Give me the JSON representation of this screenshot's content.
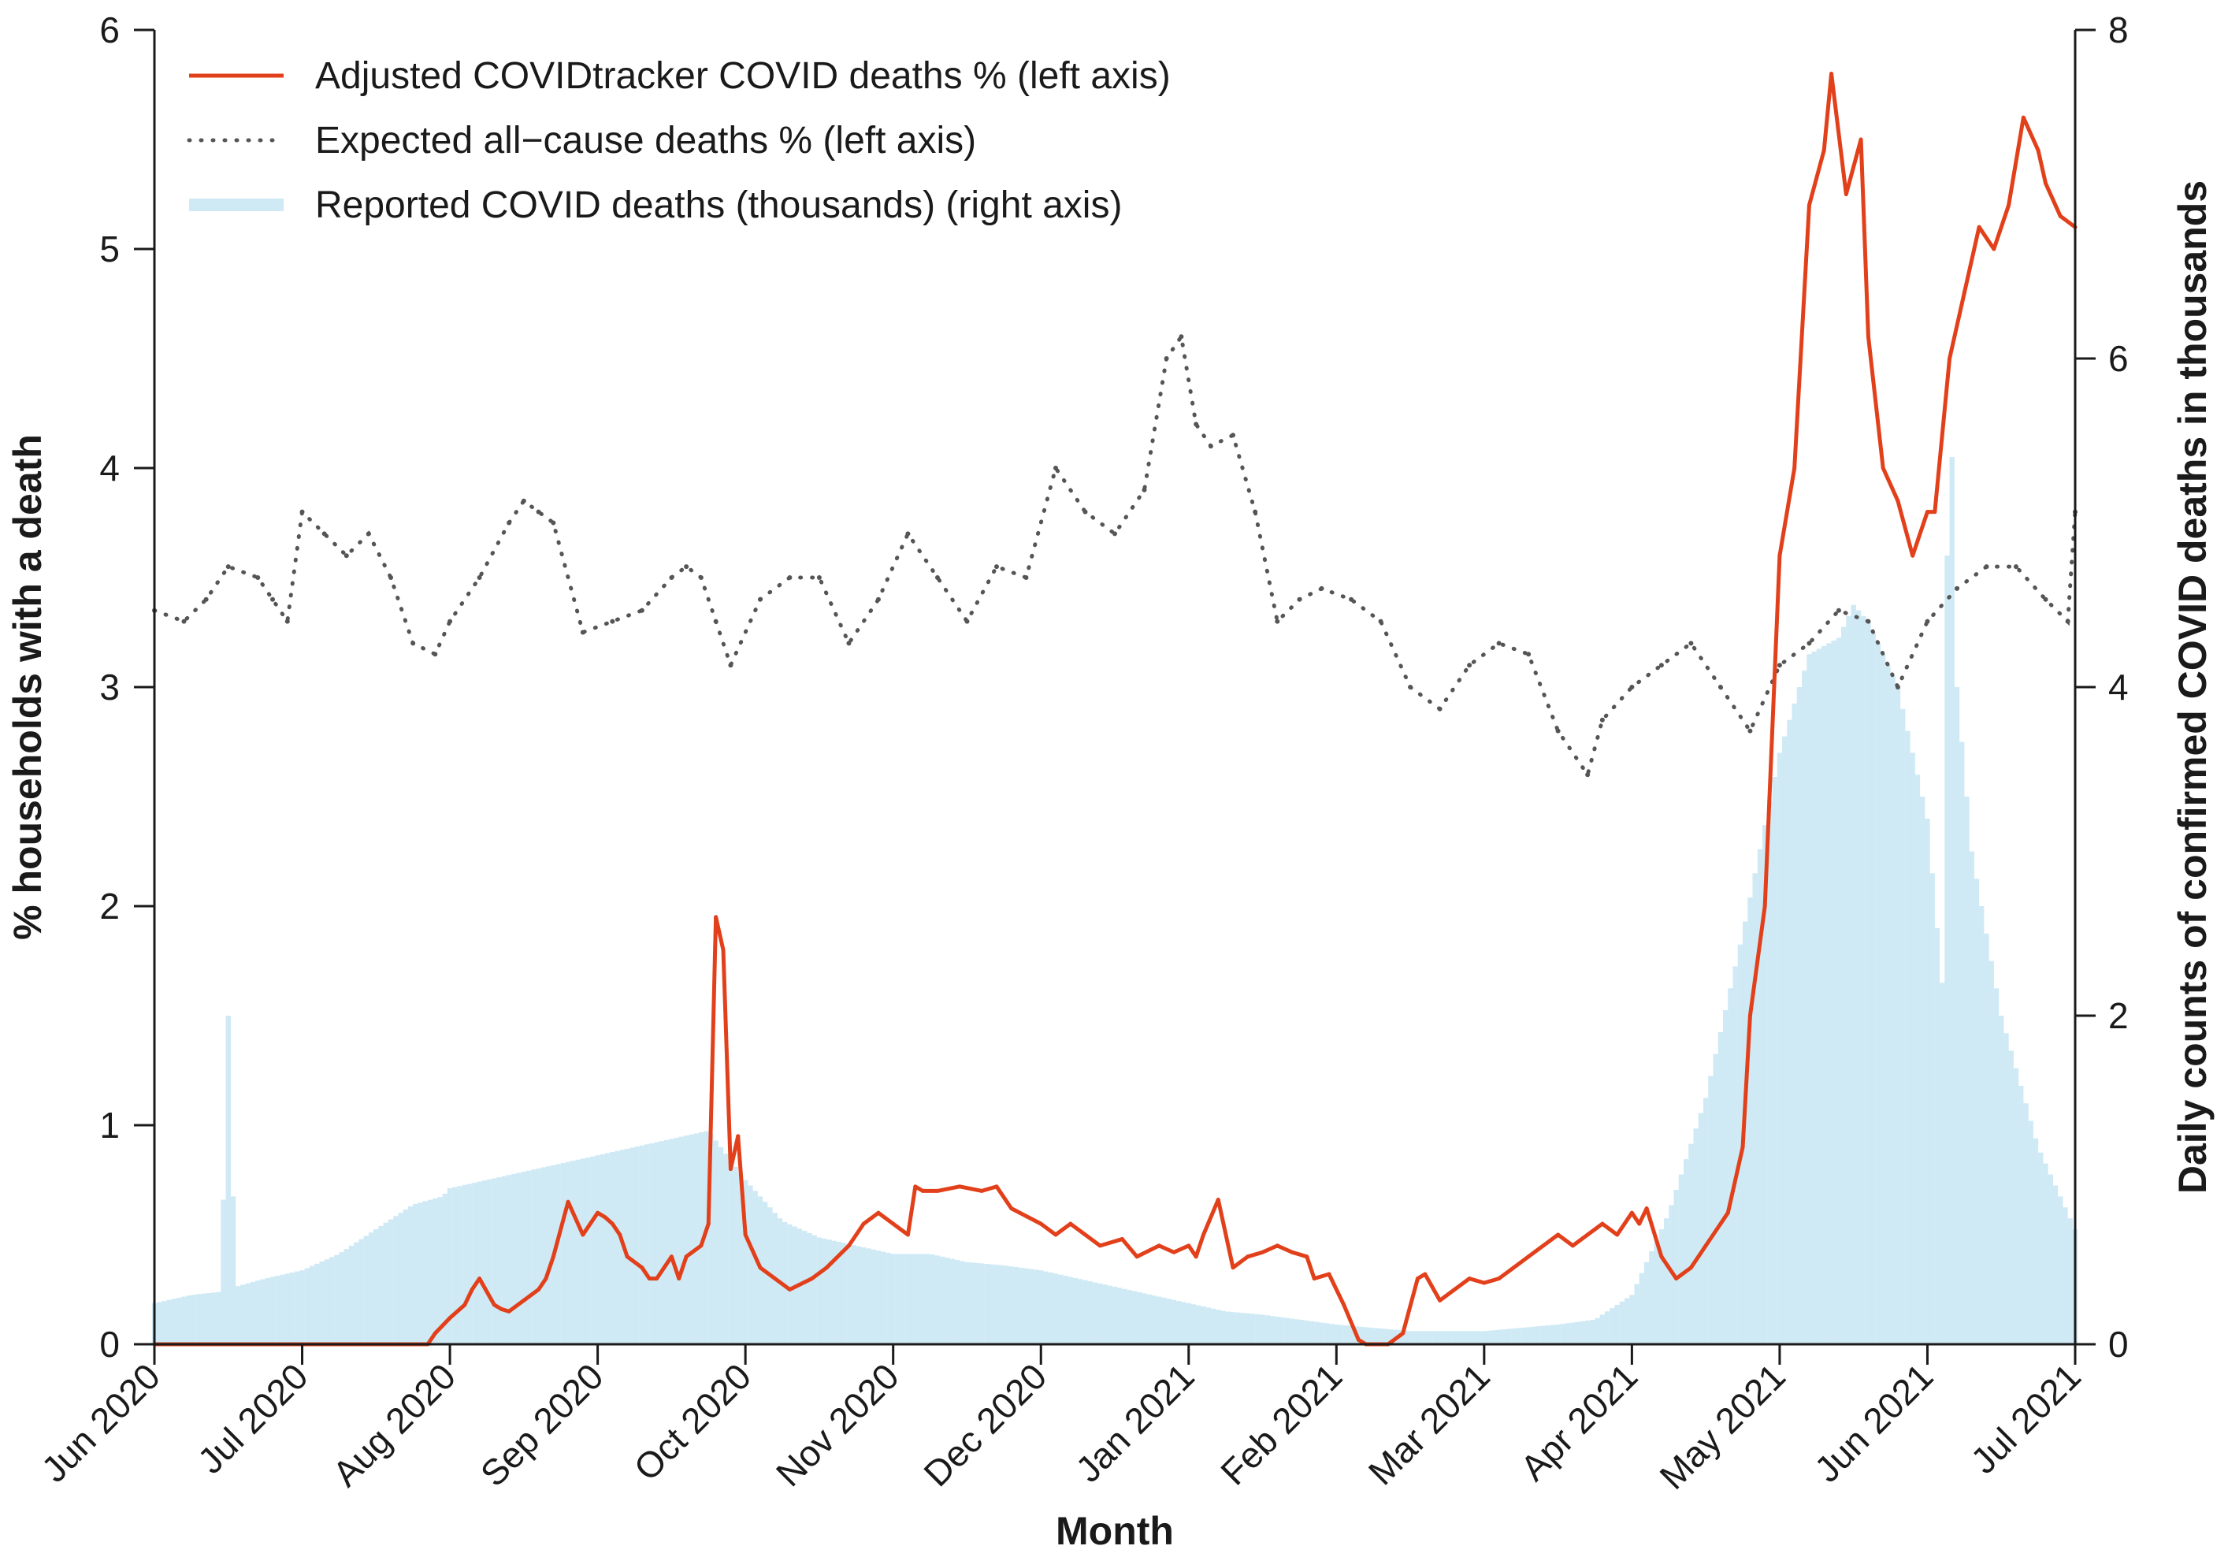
{
  "chart_data": {
    "type": "line",
    "xlabel": "Month",
    "ylabel_left": "% households with a death",
    "ylabel_right": "Daily counts of confirmed COVID deaths in thousands",
    "x_categories": [
      "Jun 2020",
      "Jul 2020",
      "Aug 2020",
      "Sep 2020",
      "Oct 2020",
      "Nov 2020",
      "Dec 2020",
      "Jan 2021",
      "Feb 2021",
      "Mar 2021",
      "Apr 2021",
      "May 2021",
      "Jun 2021",
      "Jul 2021"
    ],
    "xlim": [
      0,
      13
    ],
    "ylim_left": [
      0,
      6
    ],
    "ylim_right": [
      0,
      8
    ],
    "yticks_left": [
      "0",
      "1",
      "2",
      "3",
      "4",
      "5",
      "6"
    ],
    "yticks_right": [
      "0",
      "2",
      "4",
      "6",
      "8"
    ],
    "legend_position": "top-left",
    "colors": {
      "adjusted": "#e2401b",
      "expected": "#555555",
      "reported": "#cfeaf5",
      "axis": "#1a1a1a"
    },
    "series": [
      {
        "name": "Adjusted COVIDtracker COVID deaths % (left axis)",
        "axis": "left",
        "style": "solid",
        "x": [
          0,
          1,
          1.85,
          1.9,
          2,
          2.1,
          2.15,
          2.2,
          2.3,
          2.35,
          2.4,
          2.5,
          2.6,
          2.65,
          2.7,
          2.8,
          2.9,
          3.0,
          3.05,
          3.1,
          3.15,
          3.2,
          3.3,
          3.35,
          3.4,
          3.5,
          3.55,
          3.6,
          3.7,
          3.75,
          3.8,
          3.85,
          3.9,
          3.95,
          4.0,
          4.1,
          4.2,
          4.3,
          4.45,
          4.55,
          4.7,
          4.8,
          4.9,
          5.0,
          5.1,
          5.15,
          5.2,
          5.3,
          5.45,
          5.6,
          5.7,
          5.8,
          6.0,
          6.1,
          6.2,
          6.3,
          6.4,
          6.55,
          6.65,
          6.8,
          6.9,
          7.0,
          7.05,
          7.1,
          7.2,
          7.3,
          7.4,
          7.5,
          7.6,
          7.7,
          7.8,
          7.85,
          7.95,
          8.05,
          8.15,
          8.2,
          8.35,
          8.45,
          8.55,
          8.6,
          8.7,
          8.8,
          8.9,
          9.0,
          9.1,
          9.2,
          9.3,
          9.4,
          9.5,
          9.6,
          9.7,
          9.8,
          9.9,
          10.0,
          10.05,
          10.1,
          10.2,
          10.3,
          10.4,
          10.5,
          10.6,
          10.65,
          10.75,
          10.8,
          10.9,
          11.0,
          11.1,
          11.2,
          11.3,
          11.35,
          11.45,
          11.55,
          11.6,
          11.7,
          11.8,
          11.9,
          12.0,
          12.05,
          12.15,
          12.25,
          12.35,
          12.45,
          12.55,
          12.65,
          12.75,
          12.8,
          12.9,
          13.0
        ],
        "y": [
          0,
          0,
          0,
          0.05,
          0.12,
          0.18,
          0.25,
          0.3,
          0.18,
          0.16,
          0.15,
          0.2,
          0.25,
          0.3,
          0.4,
          0.65,
          0.5,
          0.6,
          0.58,
          0.55,
          0.5,
          0.4,
          0.35,
          0.3,
          0.3,
          0.4,
          0.3,
          0.4,
          0.45,
          0.55,
          1.95,
          1.8,
          0.8,
          0.95,
          0.5,
          0.35,
          0.3,
          0.25,
          0.3,
          0.35,
          0.45,
          0.55,
          0.6,
          0.55,
          0.5,
          0.72,
          0.7,
          0.7,
          0.72,
          0.7,
          0.72,
          0.62,
          0.55,
          0.5,
          0.55,
          0.5,
          0.45,
          0.48,
          0.4,
          0.45,
          0.42,
          0.45,
          0.4,
          0.5,
          0.66,
          0.35,
          0.4,
          0.42,
          0.45,
          0.42,
          0.4,
          0.3,
          0.32,
          0.18,
          0.02,
          0,
          0,
          0.05,
          0.3,
          0.32,
          0.2,
          0.25,
          0.3,
          0.28,
          0.3,
          0.35,
          0.4,
          0.45,
          0.5,
          0.45,
          0.5,
          0.55,
          0.5,
          0.6,
          0.55,
          0.62,
          0.4,
          0.3,
          0.35,
          0.45,
          0.55,
          0.6,
          0.9,
          1.5,
          2.0,
          3.6,
          4.0,
          5.2,
          5.45,
          5.8,
          5.25,
          5.5,
          4.6,
          4.0,
          3.85,
          3.6,
          3.8,
          3.8,
          4.5,
          4.8,
          5.1,
          5.0,
          5.2,
          5.6,
          5.45,
          5.3,
          5.15,
          5.1
        ]
      },
      {
        "name": "Expected all−cause deaths % (left axis)",
        "axis": "left",
        "style": "dotted",
        "x": [
          0,
          0.2,
          0.35,
          0.5,
          0.7,
          0.8,
          0.9,
          1.0,
          1.15,
          1.3,
          1.45,
          1.6,
          1.75,
          1.9,
          2.0,
          2.2,
          2.4,
          2.5,
          2.6,
          2.7,
          2.9,
          3.1,
          3.3,
          3.5,
          3.6,
          3.7,
          3.8,
          3.9,
          4.1,
          4.3,
          4.5,
          4.7,
          4.9,
          5.1,
          5.3,
          5.5,
          5.7,
          5.9,
          6.1,
          6.3,
          6.5,
          6.7,
          6.85,
          6.95,
          7.05,
          7.15,
          7.3,
          7.45,
          7.6,
          7.75,
          7.9,
          8.1,
          8.3,
          8.5,
          8.7,
          8.9,
          9.1,
          9.3,
          9.5,
          9.7,
          9.8,
          10.0,
          10.2,
          10.4,
          10.6,
          10.8,
          11.0,
          11.2,
          11.4,
          11.6,
          11.8,
          12.0,
          12.2,
          12.4,
          12.6,
          12.8,
          12.95,
          13.0
        ],
        "y": [
          3.35,
          3.3,
          3.4,
          3.55,
          3.5,
          3.4,
          3.3,
          3.8,
          3.7,
          3.6,
          3.7,
          3.5,
          3.2,
          3.15,
          3.3,
          3.5,
          3.75,
          3.85,
          3.8,
          3.75,
          3.25,
          3.3,
          3.35,
          3.5,
          3.55,
          3.5,
          3.3,
          3.1,
          3.4,
          3.5,
          3.5,
          3.2,
          3.4,
          3.7,
          3.5,
          3.3,
          3.55,
          3.5,
          4.0,
          3.8,
          3.7,
          3.9,
          4.5,
          4.6,
          4.2,
          4.1,
          4.15,
          3.8,
          3.3,
          3.4,
          3.45,
          3.4,
          3.3,
          3.0,
          2.9,
          3.1,
          3.2,
          3.15,
          2.8,
          2.6,
          2.85,
          3.0,
          3.1,
          3.2,
          3.0,
          2.8,
          3.1,
          3.2,
          3.35,
          3.3,
          3.0,
          3.3,
          3.45,
          3.55,
          3.55,
          3.4,
          3.3,
          3.8
        ]
      },
      {
        "name": "Reported COVID deaths (thousands) (right axis)",
        "axis": "right",
        "style": "bar",
        "x": [
          0,
          0.25,
          0.45,
          0.5,
          0.55,
          0.75,
          1.0,
          1.25,
          1.5,
          1.75,
          1.95,
          2.0,
          2.25,
          2.5,
          2.75,
          3.0,
          3.25,
          3.5,
          3.75,
          4.0,
          4.25,
          4.5,
          4.75,
          5.0,
          5.25,
          5.5,
          5.75,
          6.0,
          6.25,
          6.5,
          6.75,
          7.0,
          7.25,
          7.5,
          7.75,
          8.0,
          8.25,
          8.5,
          8.75,
          9.0,
          9.25,
          9.5,
          9.75,
          10.0,
          10.25,
          10.5,
          10.75,
          11.0,
          11.2,
          11.4,
          11.5,
          11.6,
          11.8,
          12.0,
          12.1,
          12.15,
          12.2,
          12.3,
          12.5,
          12.75,
          13.0
        ],
        "y": [
          0.25,
          0.3,
          0.32,
          2.0,
          0.35,
          0.4,
          0.45,
          0.55,
          0.7,
          0.85,
          0.9,
          0.95,
          1.0,
          1.05,
          1.1,
          1.15,
          1.2,
          1.25,
          1.3,
          1.0,
          0.75,
          0.65,
          0.6,
          0.55,
          0.55,
          0.5,
          0.48,
          0.45,
          0.4,
          0.35,
          0.3,
          0.25,
          0.2,
          0.18,
          0.15,
          0.12,
          0.1,
          0.08,
          0.08,
          0.08,
          0.1,
          0.12,
          0.15,
          0.3,
          0.8,
          1.5,
          2.5,
          3.6,
          4.2,
          4.3,
          4.5,
          4.4,
          4.0,
          3.2,
          2.2,
          6.1,
          4.0,
          3.0,
          2.0,
          1.2,
          0.7
        ]
      }
    ]
  }
}
